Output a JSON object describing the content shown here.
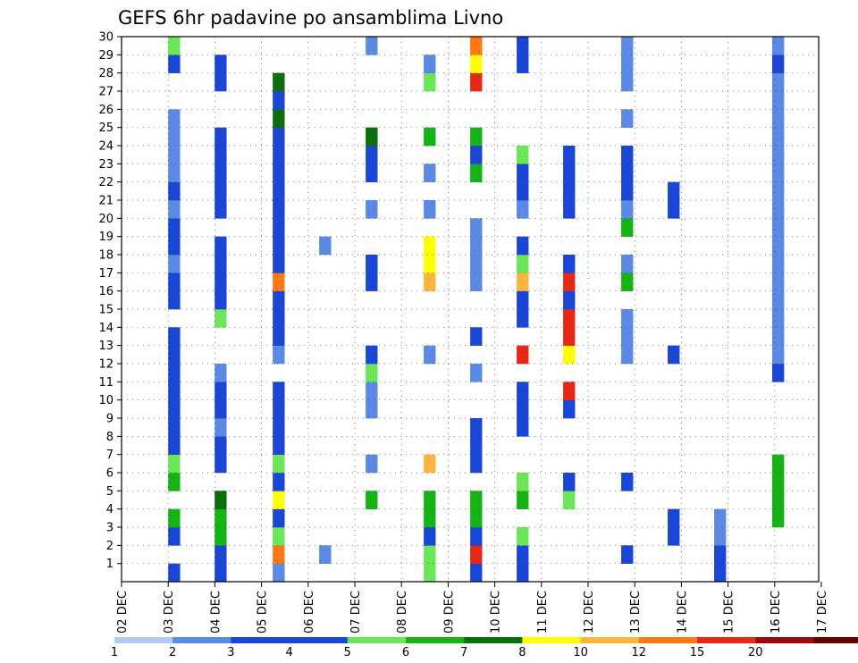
{
  "chart_data": {
    "type": "heatmap",
    "title": "GEFS 6hr padavine po ansamblima Livno",
    "xlabel": "",
    "ylabel": "",
    "x_start": "02 DEC",
    "x_step_hours": 6,
    "x_categories": [
      "02 DEC",
      "03 DEC",
      "04 DEC",
      "05 DEC",
      "06 DEC",
      "07 DEC",
      "08 DEC",
      "09 DEC",
      "10 DEC",
      "11 DEC",
      "12 DEC",
      "13 DEC",
      "14 DEC",
      "15 DEC",
      "16 DEC",
      "17 DEC"
    ],
    "y_categories": [
      "1",
      "2",
      "3",
      "4",
      "5",
      "6",
      "7",
      "8",
      "9",
      "10",
      "11",
      "12",
      "13",
      "14",
      "15",
      "16",
      "17",
      "18",
      "19",
      "20",
      "21",
      "22",
      "23",
      "24",
      "25",
      "26",
      "27",
      "28",
      "29",
      "30"
    ],
    "ylim": [
      0,
      30
    ],
    "grid": true,
    "colorbar": {
      "position": "bottom",
      "labels": [
        "1",
        "2",
        "3",
        "4",
        "5",
        "6",
        "7",
        "8",
        "10",
        "12",
        "15",
        "20"
      ],
      "colors": [
        "#b4c8f4",
        "#5a8ae6",
        "#1a46d8",
        "#1a46d8",
        "#6ae656",
        "#14b414",
        "#0a6e0a",
        "#ffff00",
        "#ffb43c",
        "#ff7814",
        "#e62814",
        "#a00a0a",
        "#640000"
      ]
    },
    "cells": [
      [
        0,
        0,
        2
      ],
      [
        0,
        2,
        2
      ],
      [
        0,
        3,
        5
      ],
      [
        0,
        5,
        5
      ],
      [
        0,
        6,
        4
      ],
      [
        0,
        7,
        3
      ],
      [
        0,
        8,
        3
      ],
      [
        0,
        9,
        2
      ],
      [
        0,
        10,
        3
      ],
      [
        0,
        11,
        3
      ],
      [
        0,
        12,
        3
      ],
      [
        0,
        13,
        2
      ],
      [
        0,
        15,
        3
      ],
      [
        0,
        16,
        2
      ],
      [
        0,
        17,
        1
      ],
      [
        0,
        18,
        3
      ],
      [
        0,
        19,
        2
      ],
      [
        0,
        20,
        1
      ],
      [
        0,
        21,
        3
      ],
      [
        0,
        22,
        1
      ],
      [
        0,
        23,
        1
      ],
      [
        0,
        24,
        1
      ],
      [
        0,
        25,
        1
      ],
      [
        0,
        28,
        2
      ],
      [
        0,
        29,
        4
      ],
      [
        1,
        0,
        2
      ],
      [
        1,
        1,
        3
      ],
      [
        1,
        2,
        5
      ],
      [
        1,
        3,
        5
      ],
      [
        1,
        4,
        6
      ],
      [
        1,
        6,
        3
      ],
      [
        1,
        7,
        2
      ],
      [
        1,
        8,
        1
      ],
      [
        1,
        9,
        2
      ],
      [
        1,
        10,
        2
      ],
      [
        1,
        11,
        1
      ],
      [
        1,
        14,
        4
      ],
      [
        1,
        15,
        2
      ],
      [
        1,
        16,
        2
      ],
      [
        1,
        17,
        2
      ],
      [
        1,
        18,
        2
      ],
      [
        1,
        20,
        2
      ],
      [
        1,
        21,
        2
      ],
      [
        1,
        22,
        3
      ],
      [
        1,
        23,
        3
      ],
      [
        1,
        24,
        3
      ],
      [
        1,
        27,
        2
      ],
      [
        1,
        28,
        3
      ],
      [
        2,
        0,
        1
      ],
      [
        2,
        1,
        9
      ],
      [
        2,
        2,
        4
      ],
      [
        2,
        3,
        2
      ],
      [
        2,
        4,
        7
      ],
      [
        2,
        5,
        2
      ],
      [
        2,
        6,
        4
      ],
      [
        2,
        7,
        3
      ],
      [
        2,
        8,
        3
      ],
      [
        2,
        9,
        3
      ],
      [
        2,
        10,
        2
      ],
      [
        2,
        12,
        1
      ],
      [
        2,
        13,
        3
      ],
      [
        2,
        14,
        3
      ],
      [
        2,
        15,
        2
      ],
      [
        2,
        16,
        9
      ],
      [
        2,
        17,
        2
      ],
      [
        2,
        18,
        2
      ],
      [
        2,
        19,
        3
      ],
      [
        2,
        20,
        2
      ],
      [
        2,
        21,
        2
      ],
      [
        2,
        22,
        2
      ],
      [
        2,
        23,
        3
      ],
      [
        2,
        24,
        3
      ],
      [
        2,
        25,
        6
      ],
      [
        2,
        26,
        2
      ],
      [
        2,
        27,
        6
      ],
      [
        3,
        1,
        1
      ],
      [
        3,
        18,
        1
      ],
      [
        4,
        4,
        5
      ],
      [
        4,
        6,
        1
      ],
      [
        4,
        9,
        1
      ],
      [
        4,
        10,
        1
      ],
      [
        4,
        11,
        4
      ],
      [
        4,
        12,
        3
      ],
      [
        4,
        16,
        2
      ],
      [
        4,
        17,
        2
      ],
      [
        4,
        20,
        1
      ],
      [
        4,
        22,
        2
      ],
      [
        4,
        23,
        2
      ],
      [
        4,
        24,
        6
      ],
      [
        4,
        29,
        1
      ],
      [
        5,
        0,
        4
      ],
      [
        5,
        1,
        4
      ],
      [
        5,
        2,
        2
      ],
      [
        5,
        3,
        5
      ],
      [
        5,
        4,
        5
      ],
      [
        5,
        6,
        8
      ],
      [
        5,
        12,
        1
      ],
      [
        5,
        16,
        8
      ],
      [
        5,
        17,
        7
      ],
      [
        5,
        18,
        7
      ],
      [
        5,
        20,
        1
      ],
      [
        5,
        22,
        1
      ],
      [
        5,
        24,
        5
      ],
      [
        5,
        27,
        4
      ],
      [
        5,
        28,
        1
      ],
      [
        6,
        0,
        2
      ],
      [
        6,
        1,
        10
      ],
      [
        6,
        2,
        2
      ],
      [
        6,
        3,
        5
      ],
      [
        6,
        4,
        5
      ],
      [
        6,
        6,
        2
      ],
      [
        6,
        7,
        3
      ],
      [
        6,
        8,
        3
      ],
      [
        6,
        11,
        1
      ],
      [
        6,
        13,
        2
      ],
      [
        6,
        16,
        1
      ],
      [
        6,
        17,
        1
      ],
      [
        6,
        18,
        1
      ],
      [
        6,
        19,
        1
      ],
      [
        6,
        22,
        5
      ],
      [
        6,
        23,
        2
      ],
      [
        6,
        24,
        5
      ],
      [
        6,
        27,
        10
      ],
      [
        6,
        28,
        7
      ],
      [
        6,
        29,
        9
      ],
      [
        7,
        0,
        3
      ],
      [
        7,
        1,
        3
      ],
      [
        7,
        2,
        4
      ],
      [
        7,
        4,
        5
      ],
      [
        7,
        5,
        4
      ],
      [
        7,
        8,
        3
      ],
      [
        7,
        9,
        3
      ],
      [
        7,
        10,
        3
      ],
      [
        7,
        12,
        10
      ],
      [
        7,
        14,
        3
      ],
      [
        7,
        15,
        3
      ],
      [
        7,
        16,
        8
      ],
      [
        7,
        17,
        4
      ],
      [
        7,
        18,
        2
      ],
      [
        7,
        20,
        1
      ],
      [
        7,
        21,
        3
      ],
      [
        7,
        22,
        3
      ],
      [
        7,
        23,
        4
      ],
      [
        7,
        28,
        2
      ],
      [
        7,
        29,
        3
      ],
      [
        8,
        4,
        4
      ],
      [
        8,
        5,
        3
      ],
      [
        8,
        9,
        3
      ],
      [
        8,
        10,
        10
      ],
      [
        8,
        12,
        7
      ],
      [
        8,
        13,
        10
      ],
      [
        8,
        14,
        10
      ],
      [
        8,
        15,
        2
      ],
      [
        8,
        16,
        10
      ],
      [
        8,
        17,
        3
      ],
      [
        8,
        20,
        2
      ],
      [
        8,
        21,
        2
      ],
      [
        8,
        22,
        2
      ],
      [
        8,
        23,
        2
      ],
      [
        9,
        1,
        3
      ],
      [
        9,
        5,
        2
      ],
      [
        9,
        12,
        1
      ],
      [
        9,
        13,
        1
      ],
      [
        9,
        14,
        1
      ],
      [
        9,
        16,
        5
      ],
      [
        9,
        17,
        1
      ],
      [
        9,
        19,
        5
      ],
      [
        9,
        20,
        1
      ],
      [
        9,
        21,
        2
      ],
      [
        9,
        22,
        2
      ],
      [
        9,
        23,
        2
      ],
      [
        9,
        25,
        1
      ],
      [
        9,
        27,
        1
      ],
      [
        9,
        28,
        1
      ],
      [
        9,
        29,
        1
      ],
      [
        10,
        2,
        3
      ],
      [
        10,
        3,
        3
      ],
      [
        10,
        12,
        2
      ],
      [
        10,
        20,
        2
      ],
      [
        10,
        21,
        3
      ],
      [
        11,
        0,
        2
      ],
      [
        11,
        1,
        2
      ],
      [
        11,
        2,
        1
      ],
      [
        11,
        3,
        1
      ],
      [
        12,
        3,
        5
      ],
      [
        12,
        4,
        5
      ],
      [
        12,
        5,
        5
      ],
      [
        12,
        6,
        5
      ],
      [
        12,
        11,
        3
      ],
      [
        12,
        12,
        1
      ],
      [
        12,
        13,
        1
      ],
      [
        12,
        14,
        1
      ],
      [
        12,
        15,
        1
      ],
      [
        12,
        16,
        1
      ],
      [
        12,
        17,
        1
      ],
      [
        12,
        18,
        1
      ],
      [
        12,
        19,
        1
      ],
      [
        12,
        20,
        1
      ],
      [
        12,
        21,
        1
      ],
      [
        12,
        22,
        1
      ],
      [
        12,
        23,
        1
      ],
      [
        12,
        24,
        1
      ],
      [
        12,
        25,
        1
      ],
      [
        12,
        26,
        1
      ],
      [
        12,
        27,
        1
      ],
      [
        12,
        28,
        2
      ],
      [
        12,
        29,
        1
      ]
    ]
  }
}
